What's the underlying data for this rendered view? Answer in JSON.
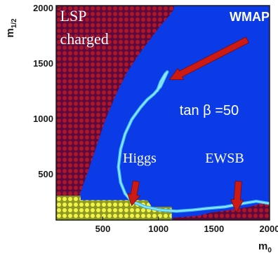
{
  "chart_data": {
    "type": "heatmap",
    "xlabel": "m",
    "xlabel_sub": "0",
    "ylabel": "m",
    "ylabel_sub": "1/2",
    "xlim": [
      80,
      2000
    ],
    "ylim": [
      80,
      2020
    ],
    "xticks": [
      500,
      1000,
      1500,
      2000
    ],
    "xtick_labels": [
      "500",
      "1000",
      "1500",
      "2000"
    ],
    "yticks": [
      500,
      1000,
      1500,
      2000
    ],
    "ytick_labels": [
      "500",
      "1000",
      "1500",
      "2000"
    ],
    "grid": false,
    "colors": {
      "background": "#0b3be6",
      "excluded_dot": "#b0142a",
      "excluded_fill": "#5a0a3c",
      "higgs_dot": "#f4f24a",
      "higgs_fill": "#8a9a20",
      "wmap_band": "#8fe8ff",
      "arrow": "#cc1a14",
      "frame": "#1a1a1a"
    },
    "regions": [
      {
        "name": "LSP charged",
        "color": "#b0142a",
        "boundary": [
          [
            80,
            2020
          ],
          [
            1140,
            2020
          ],
          [
            1140,
            1990
          ],
          [
            1100,
            1930
          ],
          [
            1020,
            1840
          ],
          [
            960,
            1760
          ],
          [
            900,
            1680
          ],
          [
            840,
            1600
          ],
          [
            780,
            1510
          ],
          [
            720,
            1420
          ],
          [
            670,
            1320
          ],
          [
            620,
            1220
          ],
          [
            570,
            1100
          ],
          [
            520,
            980
          ],
          [
            480,
            860
          ],
          [
            440,
            740
          ],
          [
            400,
            620
          ],
          [
            360,
            500
          ],
          [
            320,
            390
          ],
          [
            290,
            300
          ],
          [
            80,
            300
          ]
        ]
      },
      {
        "name": "Higgs",
        "color": "#f4f24a",
        "boundary": [
          [
            80,
            300
          ],
          [
            300,
            300
          ],
          [
            300,
            260
          ],
          [
            900,
            260
          ],
          [
            940,
            200
          ],
          [
            1120,
            200
          ],
          [
            1120,
            80
          ],
          [
            80,
            80
          ]
        ]
      },
      {
        "name": "EWSB",
        "color": "#b0142a",
        "boundary": [
          [
            1130,
            80
          ],
          [
            2000,
            80
          ],
          [
            2000,
            250
          ],
          [
            1820,
            200
          ],
          [
            1640,
            170
          ],
          [
            1480,
            150
          ],
          [
            1360,
            120
          ],
          [
            1130,
            100
          ]
        ]
      }
    ],
    "curves": [
      {
        "name": "WMAP",
        "color": "#8fe8ff",
        "x": [
          2000,
          1880,
          1760,
          1600,
          1440,
          1300,
          1160,
          1020,
          880,
          760,
          700,
          660,
          640,
          660,
          700,
          760,
          840,
          900,
          960,
          1020,
          1080,
          1060,
          1020,
          990
        ],
        "y": [
          230,
          250,
          230,
          200,
          185,
          170,
          160,
          170,
          200,
          250,
          320,
          420,
          560,
          720,
          860,
          990,
          1100,
          1170,
          1220,
          1290,
          1420,
          1400,
          1330,
          1250
        ]
      }
    ],
    "annotations": [
      {
        "text": "LSP",
        "x": 115,
        "y": 1880
      },
      {
        "text": "charged",
        "x": 115,
        "y": 1670
      },
      {
        "text": "WMAP",
        "x": 1640,
        "y": 1880
      },
      {
        "text": "tan β =50",
        "x": 1190,
        "y": 1030
      },
      {
        "text": "Higgs",
        "x": 680,
        "y": 600
      },
      {
        "text": "EWSB",
        "x": 1420,
        "y": 600
      }
    ],
    "arrows": [
      {
        "from": [
          1800,
          1710
        ],
        "to": [
          1100,
          1350
        ]
      },
      {
        "from": [
          800,
          430
        ],
        "to": [
          760,
          210
        ]
      },
      {
        "from": [
          1720,
          430
        ],
        "to": [
          1700,
          150
        ]
      }
    ]
  }
}
